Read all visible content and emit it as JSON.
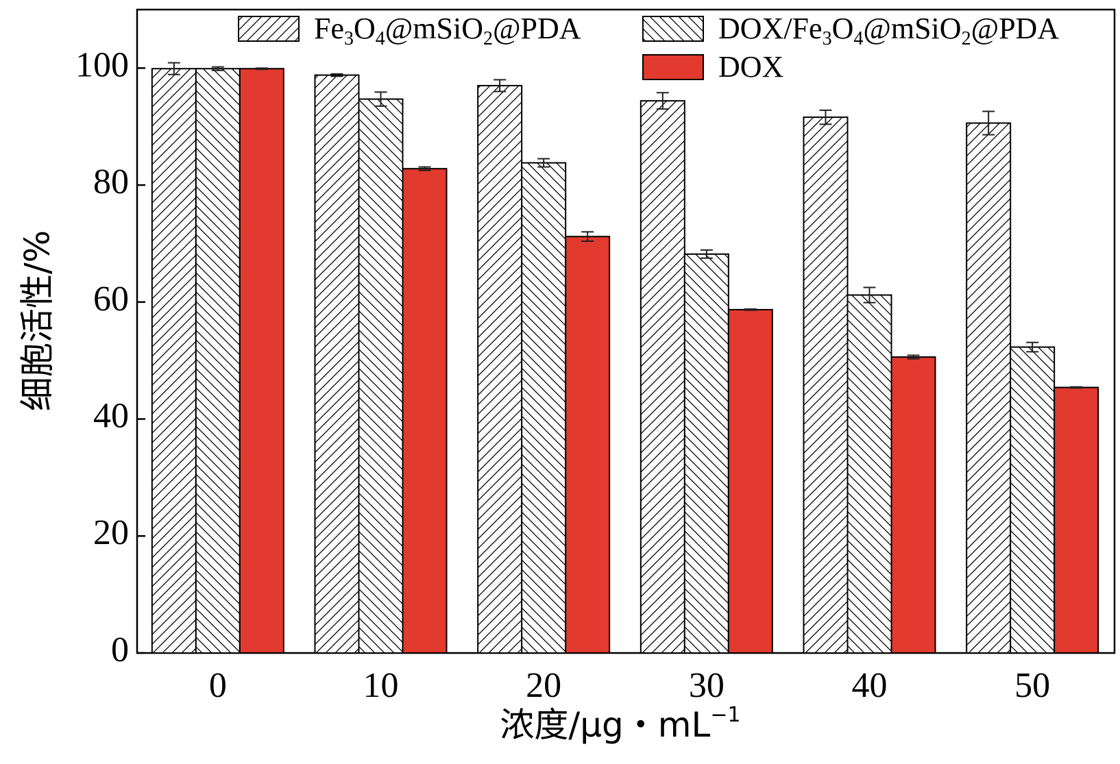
{
  "chart_data": {
    "type": "bar",
    "title": "",
    "xlabel": "浓度/μg・mL",
    "xlabel_sup": "−1",
    "ylabel": "细胞活性/%",
    "ylim": [
      0,
      110
    ],
    "yticks": [
      0,
      20,
      40,
      60,
      80,
      100
    ],
    "categories": [
      "0",
      "10",
      "20",
      "30",
      "40",
      "50"
    ],
    "series": [
      {
        "name": "Fe3O4@mSiO2@PDA",
        "legend_parts": [
          [
            "Fe",
            false
          ],
          [
            "3",
            true
          ],
          [
            "O",
            false
          ],
          [
            "4",
            true
          ],
          [
            "@mSiO",
            false
          ],
          [
            "2",
            true
          ],
          [
            "@PDA",
            false
          ]
        ],
        "pattern": "hatch-forward",
        "color": "#000000",
        "values": [
          99.9,
          98.8,
          97.0,
          94.4,
          91.6,
          90.6
        ],
        "errors": [
          1.0,
          0.2,
          1.0,
          1.4,
          1.2,
          2.0
        ]
      },
      {
        "name": "DOX/Fe3O4@mSiO2@PDA",
        "legend_parts": [
          [
            "DOX/Fe",
            false
          ],
          [
            "3",
            true
          ],
          [
            "O",
            false
          ],
          [
            "4",
            true
          ],
          [
            "@mSiO",
            false
          ],
          [
            "2",
            true
          ],
          [
            "@PDA",
            false
          ]
        ],
        "pattern": "hatch-back",
        "color": "#000000",
        "values": [
          99.9,
          94.7,
          83.8,
          68.2,
          61.2,
          52.3
        ],
        "errors": [
          0.3,
          1.2,
          0.7,
          0.7,
          1.3,
          0.8
        ]
      },
      {
        "name": "DOX",
        "legend_parts": [
          [
            "DOX",
            false
          ]
        ],
        "pattern": "solid",
        "color": "#e23a2f",
        "values": [
          99.9,
          82.8,
          71.2,
          58.7,
          50.6,
          45.4
        ],
        "errors": [
          0.1,
          0.3,
          0.8,
          0.1,
          0.3,
          0.1
        ]
      }
    ],
    "legend_position": "top-right",
    "grid": false
  }
}
